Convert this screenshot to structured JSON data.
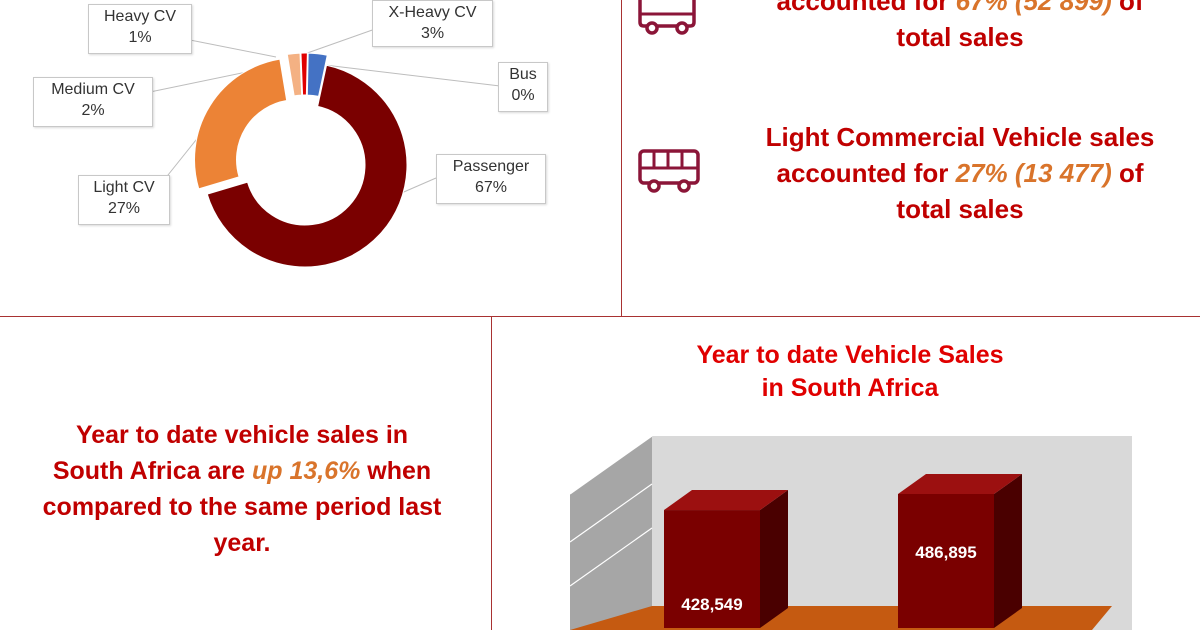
{
  "colors": {
    "passenger": "#7a0000",
    "light_cv": "#ec8336",
    "medium_cv": "#f4b183",
    "heavy_cv": "#e00000",
    "x_heavy_cv": "#4472c4",
    "bus": "#a5a5a5",
    "accent_red": "#c00000",
    "accent_orange": "#d9742b",
    "bar": "#7a0000",
    "floor": "#c55a11"
  },
  "chart_data": [
    {
      "type": "pie",
      "variant": "doughnut-exploded",
      "slices": [
        {
          "label": "Passenger",
          "value": 67,
          "display": "67%"
        },
        {
          "label": "Light CV",
          "value": 27,
          "display": "27%"
        },
        {
          "label": "Medium CV",
          "value": 2,
          "display": "2%"
        },
        {
          "label": "Heavy CV",
          "value": 1,
          "display": "1%"
        },
        {
          "label": "X-Heavy CV",
          "value": 3,
          "display": "3%"
        },
        {
          "label": "Bus",
          "value": 0,
          "display": "0%"
        }
      ]
    },
    {
      "type": "bar",
      "style": "3d",
      "title_line1": "Year to date Vehicle Sales",
      "title_line2": "in South Africa",
      "categories": [
        "",
        ""
      ],
      "values": [
        428549,
        486895
      ],
      "labels": [
        "428,549",
        "486,895"
      ],
      "grid": true
    }
  ],
  "stats": {
    "passenger": {
      "line1_a": "accounted for ",
      "line1_hl": "67% (52 899)",
      "line1_b": " of",
      "line2": "total sales"
    },
    "lcv": {
      "line1": "Light Commercial Vehicle sales",
      "line2_a": "accounted for ",
      "line2_hl": "27% (13 477)",
      "line2_b": " of",
      "line3": "total sales"
    }
  },
  "summary": {
    "line1": "Year to date vehicle sales in",
    "line2_a": "South Africa are ",
    "line2_hl": "up 13,6%",
    "line2_b": " when",
    "line3": "compared to the same period last",
    "line4": "year."
  },
  "icons": {
    "car": "car-icon",
    "van": "van-icon"
  }
}
